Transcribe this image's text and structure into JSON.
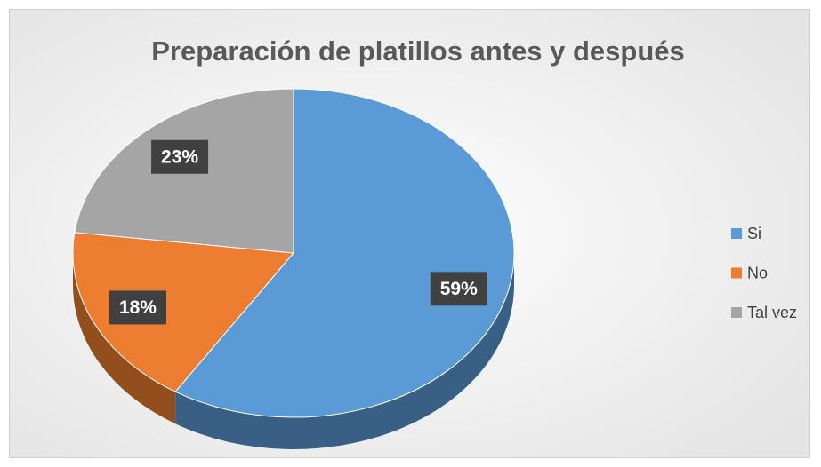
{
  "chart_data": {
    "type": "pie",
    "title": "Preparación de platillos antes y después",
    "categories": [
      "Si",
      "No",
      "Tal vez"
    ],
    "values": [
      59,
      18,
      23
    ],
    "value_labels": [
      "59%",
      "18%",
      "23%"
    ],
    "colors": [
      "#5b9bd5",
      "#ed7d31",
      "#a5a5a5"
    ],
    "legend": "right"
  }
}
